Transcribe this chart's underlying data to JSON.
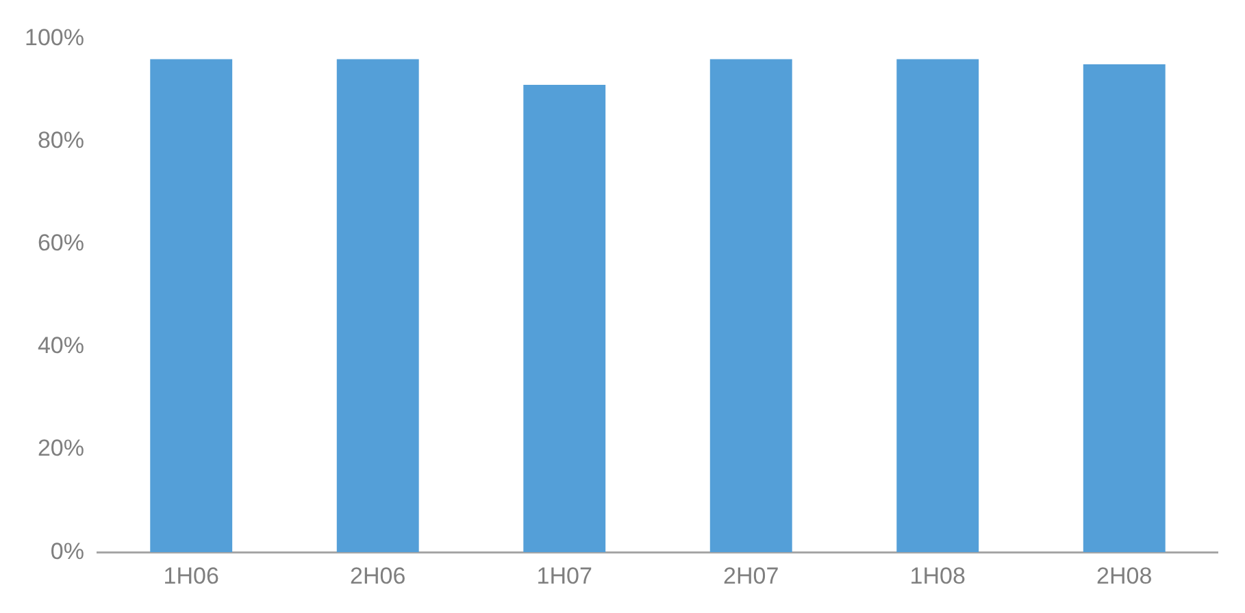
{
  "chart_data": {
    "type": "bar",
    "categories": [
      "1H06",
      "2H06",
      "1H07",
      "2H07",
      "1H08",
      "2H08"
    ],
    "values": [
      96,
      96,
      91,
      96,
      96,
      95
    ],
    "color": "#549fd8",
    "ylim": [
      0,
      100
    ],
    "yticks": [
      {
        "value": 0,
        "label": "0%"
      },
      {
        "value": 20,
        "label": "20%"
      },
      {
        "value": 40,
        "label": "40%"
      },
      {
        "value": 60,
        "label": "60%"
      },
      {
        "value": 80,
        "label": "80%"
      },
      {
        "value": 100,
        "label": "100%"
      }
    ],
    "grid": false,
    "legend": false
  }
}
